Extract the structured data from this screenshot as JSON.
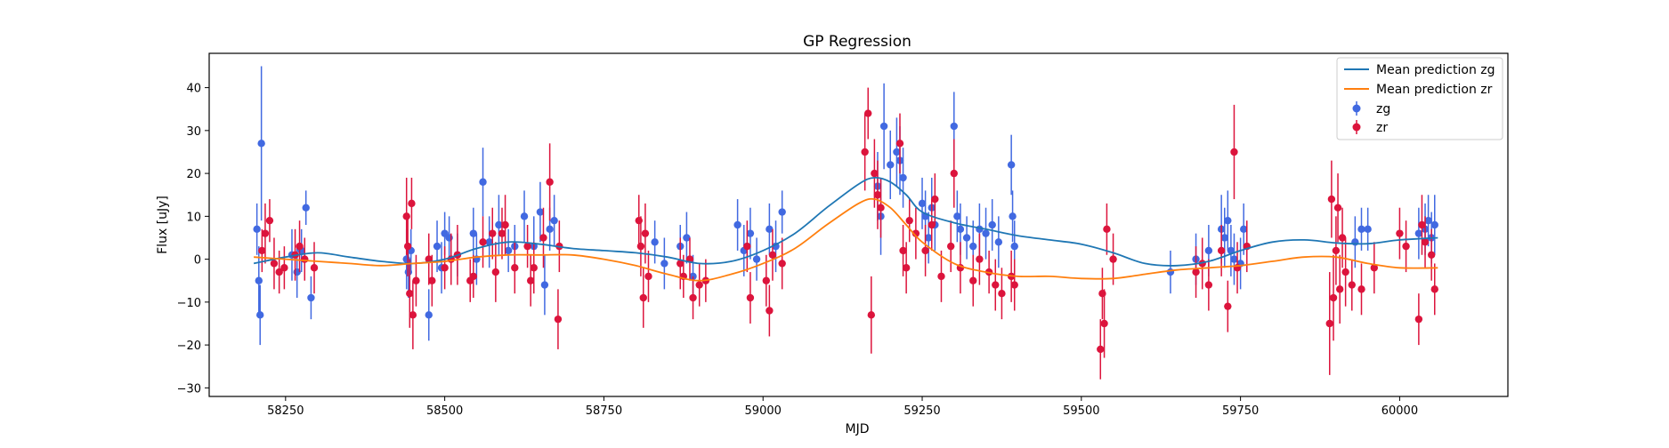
{
  "chart_data": {
    "type": "scatter",
    "title": "GP Regression",
    "xlabel": "MJD",
    "ylabel": "Flux [uJy]",
    "xlim": [
      58130,
      60170
    ],
    "ylim": [
      -32,
      48
    ],
    "xticks": [
      58250,
      58500,
      58750,
      59000,
      59250,
      59500,
      59750,
      60000
    ],
    "yticks": [
      -30,
      -20,
      -10,
      0,
      10,
      20,
      30,
      40
    ],
    "grid": false,
    "legend_position": "top-right",
    "colors": {
      "mean_zg": "#1f77b4",
      "mean_zr": "#ff7f0e",
      "obs_zg": "#4169e1",
      "obs_zr": "#dc143c"
    },
    "lines": [
      {
        "name": "Mean prediction zg",
        "x": [
          58200,
          58250,
          58300,
          58350,
          58400,
          58450,
          58500,
          58550,
          58600,
          58650,
          58700,
          58750,
          58800,
          58850,
          58900,
          58950,
          59000,
          59050,
          59100,
          59150,
          59175,
          59200,
          59225,
          59250,
          59300,
          59350,
          59400,
          59450,
          59500,
          59550,
          59600,
          59650,
          59700,
          59750,
          59800,
          59850,
          59900,
          59950,
          60000,
          60060
        ],
        "y": [
          -1.0,
          0.5,
          1.5,
          0.5,
          -0.5,
          -1.0,
          0.0,
          2.5,
          4.0,
          3.5,
          2.5,
          2.0,
          1.5,
          0.5,
          -1.0,
          -0.5,
          2.0,
          6.0,
          12.0,
          17.5,
          19.0,
          18.0,
          15.0,
          11.0,
          8.5,
          7.0,
          5.5,
          4.5,
          3.5,
          1.5,
          -1.0,
          -1.5,
          -0.5,
          2.0,
          4.0,
          4.5,
          3.8,
          3.6,
          4.5,
          5.0
        ]
      },
      {
        "name": "Mean prediction zr",
        "x": [
          58200,
          58250,
          58300,
          58350,
          58400,
          58450,
          58500,
          58550,
          58600,
          58650,
          58700,
          58750,
          58800,
          58850,
          58900,
          58950,
          59000,
          59050,
          59100,
          59150,
          59175,
          59200,
          59225,
          59250,
          59300,
          59350,
          59400,
          59450,
          59500,
          59550,
          59600,
          59650,
          59700,
          59750,
          59800,
          59850,
          59900,
          59950,
          60000,
          60060
        ],
        "y": [
          0.5,
          0.0,
          -0.5,
          -1.0,
          -1.5,
          -1.0,
          -0.5,
          0.5,
          1.0,
          1.0,
          1.0,
          0.0,
          -1.5,
          -3.5,
          -5.0,
          -3.5,
          -1.0,
          2.5,
          8.0,
          13.0,
          14.0,
          12.0,
          8.0,
          4.0,
          -1.0,
          -3.0,
          -4.0,
          -4.0,
          -4.5,
          -4.5,
          -3.5,
          -2.5,
          -2.0,
          -1.5,
          -0.5,
          0.5,
          0.5,
          -1.0,
          -2.0,
          -2.0
        ]
      }
    ],
    "series": [
      {
        "name": "zg",
        "x": [
          58205,
          58208,
          58210,
          58212,
          58260,
          58268,
          58275,
          58282,
          58290,
          58440,
          58443,
          58447,
          58475,
          58488,
          58495,
          58500,
          58507,
          58520,
          58545,
          58550,
          58560,
          58570,
          58585,
          58600,
          58610,
          58625,
          58640,
          58650,
          58657,
          58665,
          58672,
          58830,
          58845,
          58870,
          58880,
          58890,
          58960,
          58970,
          58980,
          58990,
          59010,
          59020,
          59030,
          59180,
          59185,
          59190,
          59200,
          59210,
          59215,
          59220,
          59250,
          59255,
          59260,
          59265,
          59270,
          59300,
          59305,
          59310,
          59320,
          59330,
          59340,
          59350,
          59360,
          59370,
          59390,
          59392,
          59395,
          59640,
          59680,
          59700,
          59720,
          59725,
          59730,
          59735,
          59740,
          59750,
          59755,
          59930,
          59940,
          59950,
          60030,
          60040,
          60045,
          60050,
          60055
        ],
        "y": [
          7,
          -5,
          -13,
          27,
          1,
          -3,
          2,
          12,
          -9,
          0,
          -3,
          2,
          -13,
          3,
          -2,
          6,
          5,
          1,
          6,
          0,
          18,
          4,
          8,
          2,
          3,
          10,
          3,
          11,
          -6,
          7,
          9,
          4,
          -1,
          3,
          5,
          -4,
          8,
          2,
          6,
          0,
          7,
          3,
          11,
          17,
          10,
          31,
          22,
          25,
          23,
          19,
          13,
          10,
          5,
          12,
          8,
          31,
          10,
          7,
          5,
          3,
          7,
          6,
          8,
          4,
          22,
          10,
          3,
          -3,
          0,
          2,
          7,
          5,
          9,
          2,
          0,
          -1,
          7,
          4,
          7,
          7,
          6,
          7,
          9,
          5,
          8
        ],
        "err": [
          6,
          8,
          7,
          18,
          6,
          6,
          5,
          4,
          5,
          7,
          6,
          5,
          6,
          6,
          6,
          5,
          5,
          5,
          6,
          6,
          8,
          6,
          7,
          5,
          5,
          6,
          7,
          7,
          7,
          5,
          6,
          5,
          6,
          5,
          6,
          5,
          6,
          6,
          6,
          5,
          6,
          6,
          5,
          8,
          9,
          10,
          8,
          8,
          8,
          7,
          6,
          6,
          6,
          7,
          6,
          8,
          6,
          6,
          5,
          6,
          6,
          6,
          6,
          6,
          7,
          6,
          6,
          5,
          6,
          6,
          8,
          7,
          7,
          6,
          6,
          6,
          6,
          6,
          5,
          5,
          6,
          6,
          6,
          6,
          7
        ]
      },
      {
        "name": "zr",
        "x": [
          58213,
          58218,
          58225,
          58232,
          58240,
          58248,
          58265,
          58272,
          58280,
          58295,
          58440,
          58442,
          58445,
          58448,
          58450,
          58455,
          58475,
          58480,
          58500,
          58510,
          58520,
          58540,
          58545,
          58560,
          58575,
          58580,
          58590,
          58595,
          58610,
          58630,
          58635,
          58640,
          58655,
          58665,
          58678,
          58680,
          58805,
          58808,
          58812,
          58815,
          58820,
          58870,
          58875,
          58885,
          58890,
          58900,
          58910,
          58975,
          58980,
          59005,
          59010,
          59015,
          59030,
          59160,
          59165,
          59170,
          59175,
          59180,
          59185,
          59215,
          59220,
          59225,
          59230,
          59240,
          59255,
          59265,
          59270,
          59280,
          59295,
          59300,
          59310,
          59330,
          59340,
          59355,
          59365,
          59375,
          59390,
          59395,
          59530,
          59533,
          59536,
          59540,
          59550,
          59680,
          59690,
          59700,
          59720,
          59730,
          59740,
          59745,
          59760,
          59890,
          59893,
          59896,
          59900,
          59903,
          59906,
          59910,
          59915,
          59925,
          59940,
          59960,
          60000,
          60010,
          60030,
          60035,
          60040,
          60050,
          60055
        ],
        "y": [
          2,
          6,
          9,
          -1,
          -3,
          -2,
          1,
          3,
          0,
          -2,
          10,
          3,
          -8,
          13,
          -13,
          -5,
          0,
          -5,
          -2,
          0,
          1,
          -5,
          -4,
          4,
          6,
          -3,
          6,
          8,
          -2,
          3,
          -5,
          -2,
          5,
          18,
          -14,
          3,
          9,
          3,
          -9,
          6,
          -4,
          -1,
          -4,
          0,
          -9,
          -6,
          -5,
          3,
          -9,
          -5,
          -12,
          1,
          -1,
          25,
          34,
          -13,
          20,
          15,
          12,
          27,
          2,
          -2,
          9,
          6,
          2,
          8,
          14,
          -4,
          3,
          20,
          -2,
          -5,
          0,
          -3,
          -6,
          -8,
          -4,
          -6,
          -21,
          -8,
          -15,
          7,
          0,
          -3,
          -1,
          -6,
          2,
          -11,
          25,
          -2,
          3,
          -15,
          14,
          -9,
          2,
          12,
          -7,
          5,
          -3,
          -6,
          -7,
          -2,
          6,
          3,
          -14,
          8,
          4,
          1,
          -7
        ],
        "err": [
          5,
          7,
          5,
          6,
          5,
          5,
          6,
          6,
          5,
          6,
          9,
          7,
          8,
          6,
          8,
          6,
          6,
          6,
          5,
          6,
          7,
          5,
          5,
          6,
          6,
          7,
          6,
          7,
          6,
          5,
          6,
          6,
          7,
          9,
          7,
          6,
          6,
          7,
          7,
          7,
          6,
          6,
          5,
          5,
          5,
          5,
          5,
          6,
          6,
          6,
          6,
          6,
          6,
          9,
          6,
          9,
          8,
          8,
          7,
          7,
          6,
          6,
          5,
          6,
          6,
          6,
          6,
          6,
          6,
          8,
          6,
          6,
          6,
          5,
          6,
          6,
          6,
          6,
          7,
          6,
          8,
          6,
          6,
          6,
          6,
          6,
          6,
          6,
          11,
          6,
          6,
          12,
          9,
          10,
          8,
          8,
          8,
          7,
          8,
          6,
          6,
          6,
          6,
          6,
          6,
          7,
          6,
          6,
          6
        ]
      }
    ]
  }
}
